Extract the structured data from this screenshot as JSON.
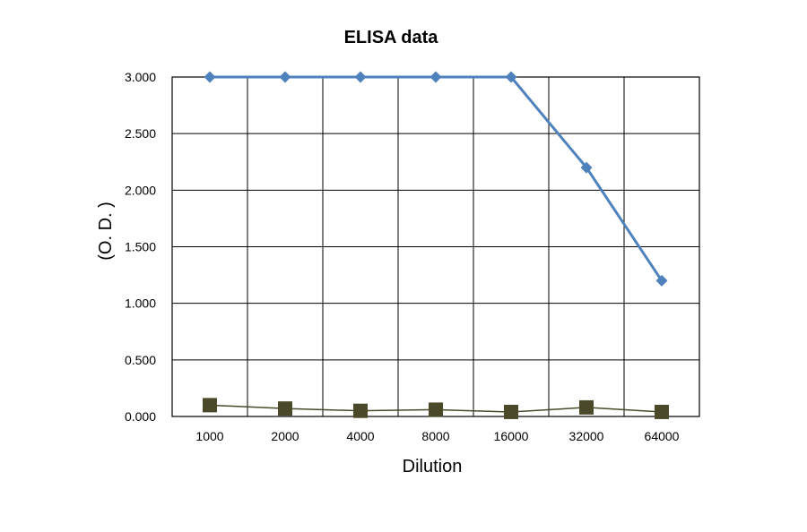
{
  "chart_data": {
    "type": "line",
    "title": "ELISA data",
    "xlabel": "Dilution",
    "ylabel": "(O. D. )",
    "categories": [
      "1000",
      "2000",
      "4000",
      "8000",
      "16000",
      "32000",
      "64000"
    ],
    "yticks": [
      "0.000",
      "0.500",
      "1.000",
      "1.500",
      "2.000",
      "2.500",
      "3.000"
    ],
    "ylim": [
      0,
      3
    ],
    "grid": true,
    "legend": "none",
    "series": [
      {
        "values": [
          3.0,
          3.0,
          3.0,
          3.0,
          3.0,
          2.2,
          1.2
        ],
        "color": "#4f81bd",
        "marker": "diamond"
      },
      {
        "values": [
          0.1,
          0.07,
          0.05,
          0.06,
          0.04,
          0.08,
          0.04
        ],
        "color": "#4a4a2a",
        "marker": "square"
      }
    ]
  }
}
